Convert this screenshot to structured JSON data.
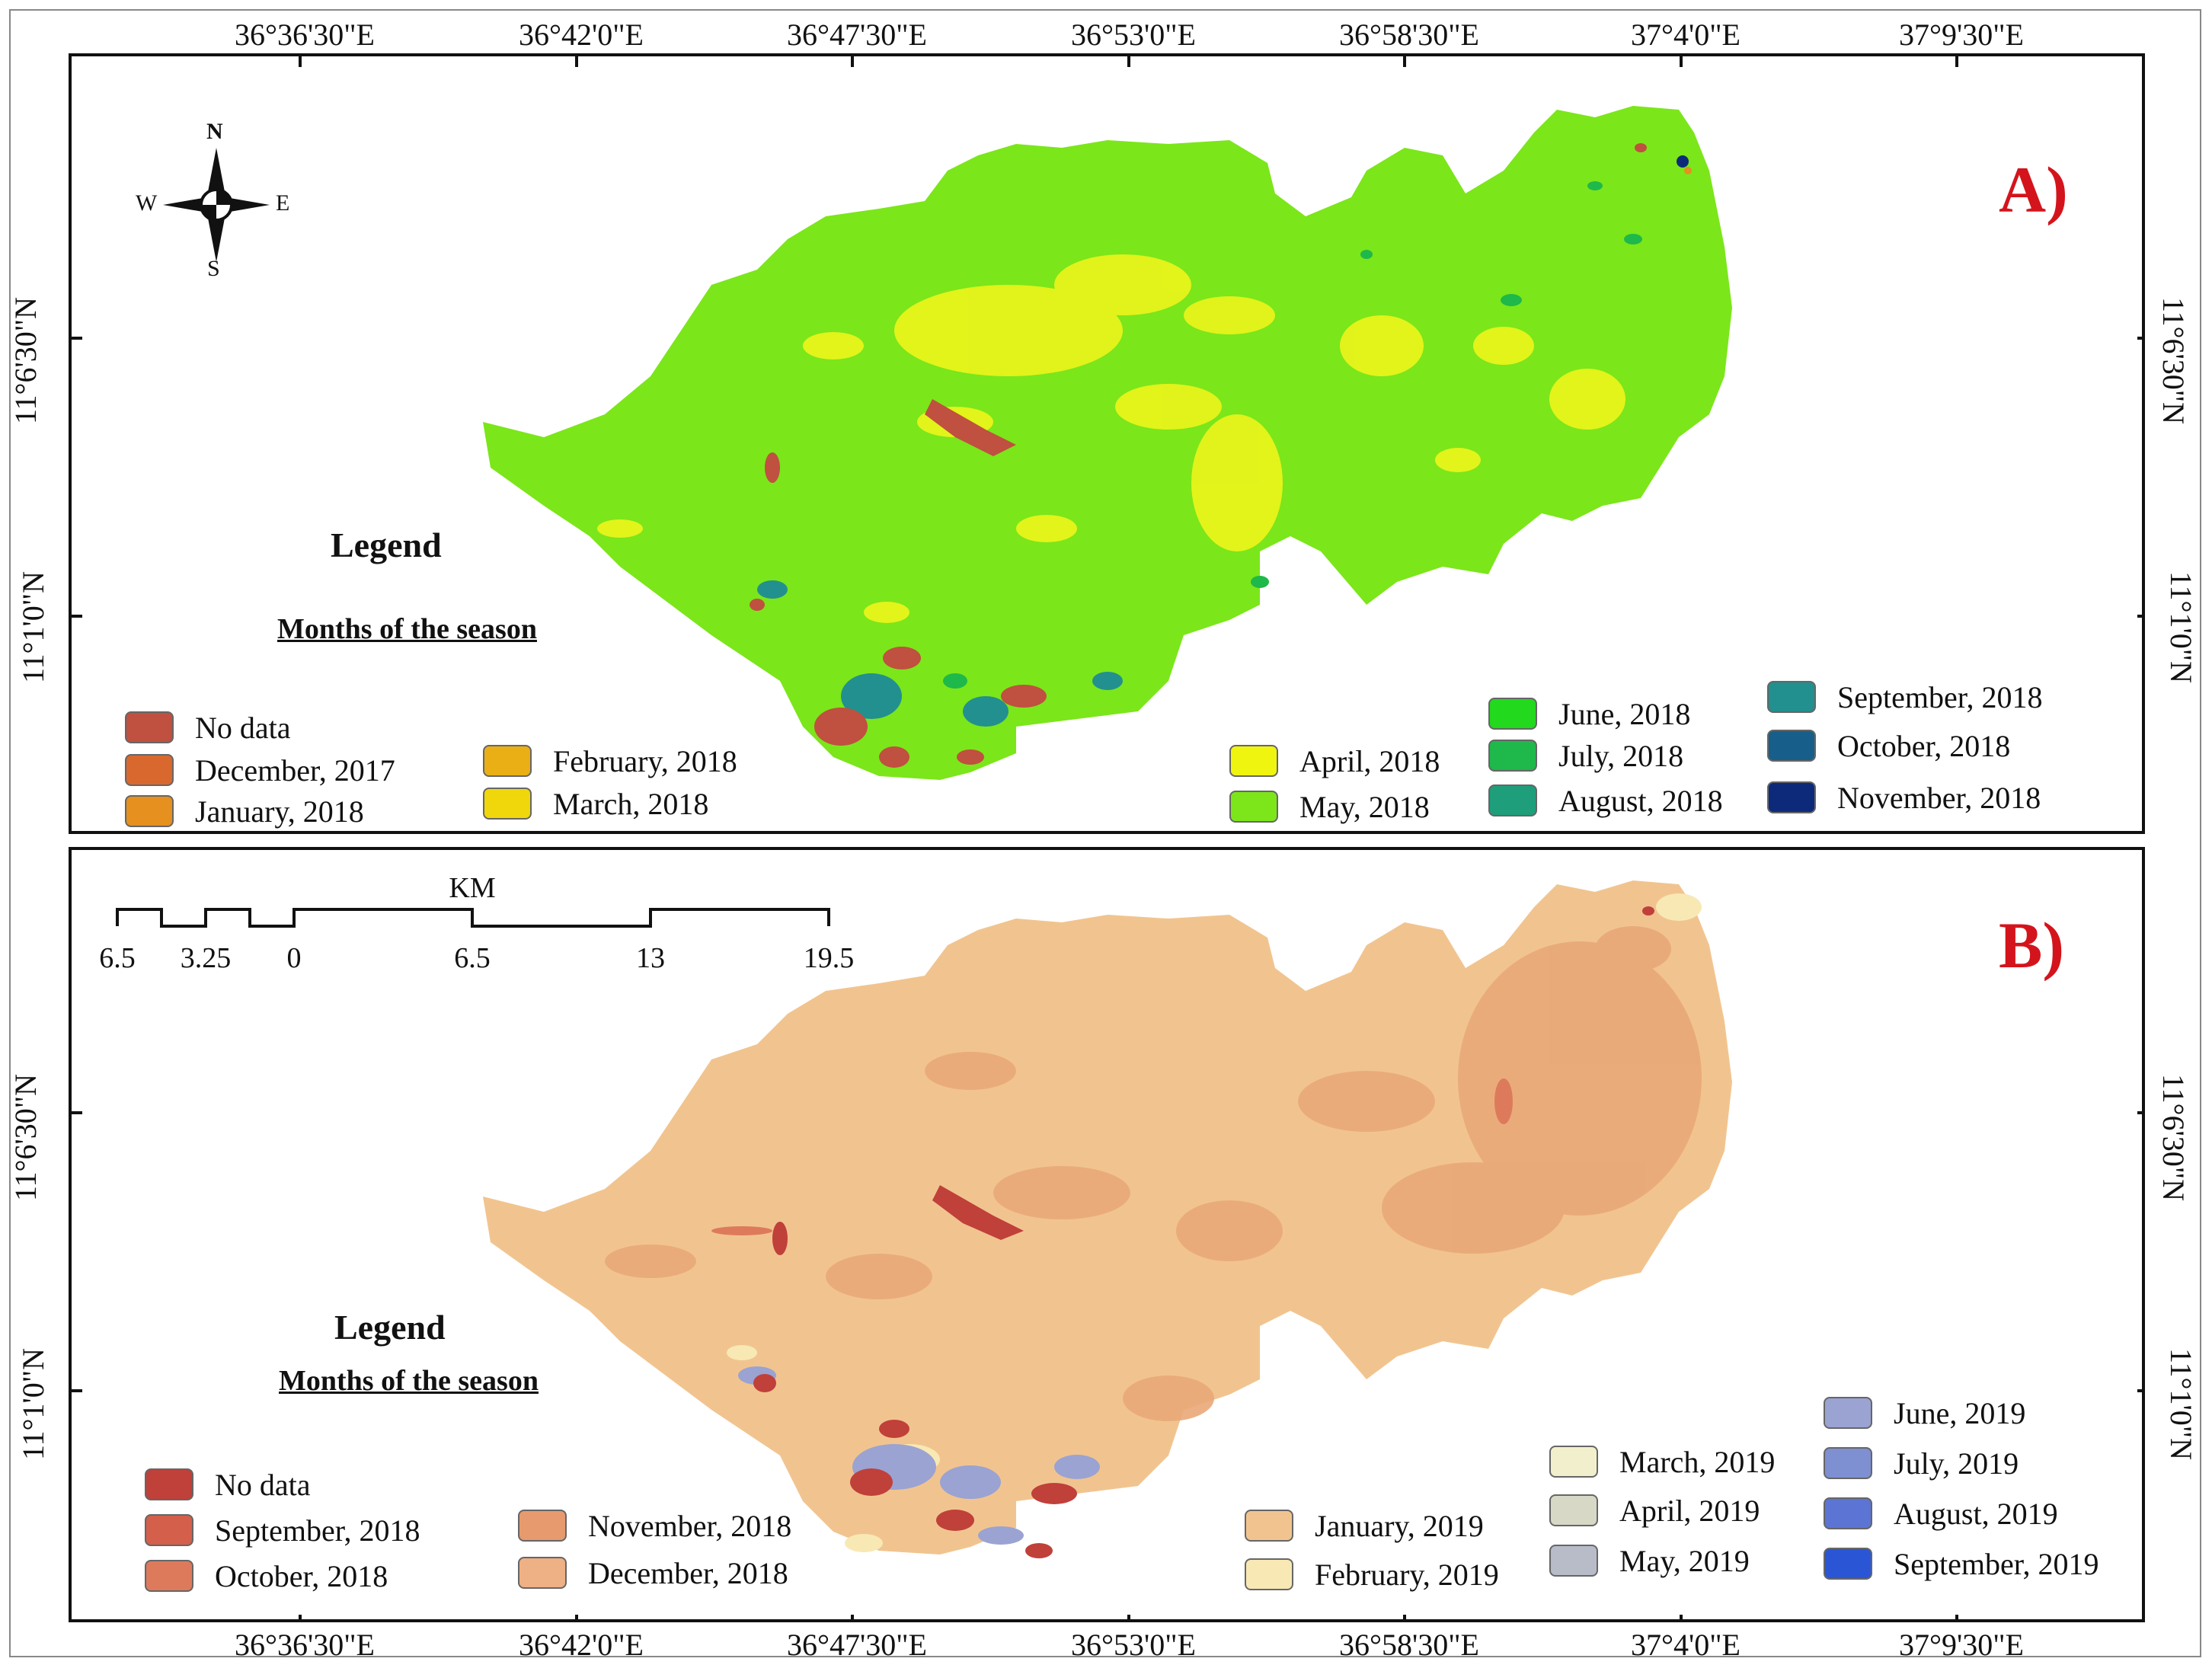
{
  "lon_ticks_top": [
    "36°36'30\"E",
    "36°42'0\"E",
    "36°47'30\"E",
    "36°53'0\"E",
    "36°58'30\"E",
    "37°4'0\"E",
    "37°9'30\"E"
  ],
  "lon_ticks_bottom": [
    "36°36'30\"E",
    "36°42'0\"E",
    "36°47'30\"E",
    "36°53'0\"E",
    "36°58'30\"E",
    "37°4'0\"E",
    "37°9'30\"E"
  ],
  "panelA": {
    "letter": "A)",
    "lat_left": [
      "11°6'30\"N",
      "11°1'0\"N"
    ],
    "lat_right": [
      "11°6'30\"N",
      "11°1'0\"N"
    ],
    "north_arrow": {
      "n": "N",
      "s": "S",
      "e": "E",
      "w": "W",
      "icon": "north-arrow-icon"
    },
    "legend": {
      "title": "Legend",
      "subtitle": "Months of the season",
      "items": [
        {
          "label": "No data",
          "color": "#c0503f"
        },
        {
          "label": "December, 2017",
          "color": "#d9682e"
        },
        {
          "label": "January, 2018",
          "color": "#e5901f"
        },
        {
          "label": "February, 2018",
          "color": "#ebaf16"
        },
        {
          "label": "March, 2018",
          "color": "#f0d70c"
        },
        {
          "label": "April, 2018",
          "color": "#f0f510"
        },
        {
          "label": "May, 2018",
          "color": "#7de61a"
        },
        {
          "label": "June, 2018",
          "color": "#22d91d"
        },
        {
          "label": "July, 2018",
          "color": "#1fb84a"
        },
        {
          "label": "August, 2018",
          "color": "#1e9e7a"
        },
        {
          "label": "September, 2018",
          "color": "#22908e"
        },
        {
          "label": "October, 2018",
          "color": "#175f8a"
        },
        {
          "label": "November, 2018",
          "color": "#0d2a7a"
        }
      ]
    },
    "base_color": "#7be61a",
    "patch_color": "#eaf51a"
  },
  "panelB": {
    "letter": "B)",
    "lat_left": [
      "11°6'30\"N",
      "11°1'0\"N"
    ],
    "lat_right": [
      "11°6'30\"N",
      "11°1'0\"N"
    ],
    "scale_bar": {
      "unit": "KM",
      "ticks": [
        "6.5",
        "3.25",
        "0",
        "6.5",
        "13",
        "19.5"
      ]
    },
    "legend": {
      "title": "Legend",
      "subtitle": "Months of the season",
      "items": [
        {
          "label": "No data",
          "color": "#c0403a"
        },
        {
          "label": "September, 2018",
          "color": "#d45f4a"
        },
        {
          "label": "October, 2018",
          "color": "#de7a5c"
        },
        {
          "label": "November, 2018",
          "color": "#e79a6e"
        },
        {
          "label": "December, 2018",
          "color": "#eeb085"
        },
        {
          "label": "January, 2019",
          "color": "#f1c48f"
        },
        {
          "label": "February, 2019",
          "color": "#f8e8b4"
        },
        {
          "label": "March, 2019",
          "color": "#f2f0cc"
        },
        {
          "label": "April, 2019",
          "color": "#d8d8c6"
        },
        {
          "label": "May, 2019",
          "color": "#b8bcc8"
        },
        {
          "label": "June, 2019",
          "color": "#9aa3d2"
        },
        {
          "label": "July, 2019",
          "color": "#7e8fd2"
        },
        {
          "label": "August, 2019",
          "color": "#5c74d3"
        },
        {
          "label": "September, 2019",
          "color": "#2a56d6"
        }
      ]
    },
    "base_color": "#f1c48f",
    "patch_color": "#e9a878"
  }
}
